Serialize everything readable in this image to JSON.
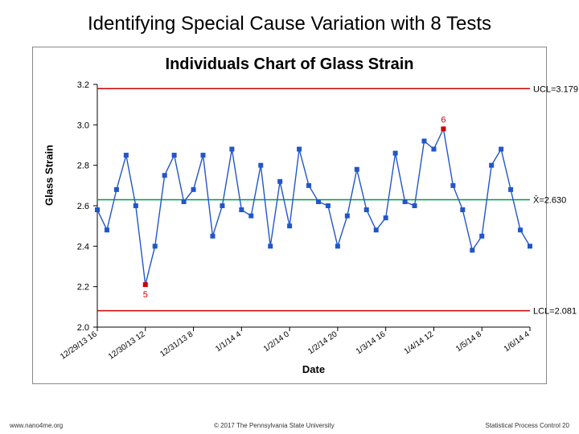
{
  "slide": {
    "title": "Identifying Special Cause Variation with 8 Tests"
  },
  "chart": {
    "type": "line",
    "title": "Individuals Chart of Glass Strain",
    "ylabel": "Glass Strain",
    "xlabel": "Date",
    "ylim": [
      2.0,
      3.2
    ],
    "ytick_step": 0.2,
    "yticks": [
      "3.2",
      "3.0",
      "2.8",
      "2.6",
      "2.4",
      "2.2",
      "2.0"
    ],
    "xticks": [
      "12/29/13 16",
      "12/30/13 12",
      "12/31/13 8",
      "1/1/14 4",
      "1/2/14 0",
      "1/2/14 20",
      "1/3/14 16",
      "1/4/14 12",
      "1/5/14 8",
      "1/6/14 4"
    ],
    "ucl": {
      "value": 3.179,
      "label": "UCL=3.179",
      "color": "#cc0000"
    },
    "mean": {
      "value": 2.63,
      "label": "X̄=2.630",
      "color": "#009944"
    },
    "lcl": {
      "value": 2.081,
      "label": "LCL=2.081",
      "color": "#cc0000"
    },
    "series": {
      "color": "#2256c9",
      "marker": "square",
      "marker_size": 5,
      "line_width": 1.4,
      "values": [
        2.58,
        2.48,
        2.68,
        2.85,
        2.6,
        2.21,
        2.4,
        2.75,
        2.85,
        2.62,
        2.68,
        2.85,
        2.45,
        2.6,
        2.88,
        2.58,
        2.55,
        2.8,
        2.4,
        2.72,
        2.5,
        2.88,
        2.7,
        2.62,
        2.6,
        2.4,
        2.55,
        2.78,
        2.58,
        2.48,
        2.54,
        2.86,
        2.62,
        2.6,
        2.92,
        2.88,
        2.98,
        2.7,
        2.58,
        2.38,
        2.45,
        2.8,
        2.88,
        2.68,
        2.48,
        2.4
      ]
    },
    "outliers": [
      {
        "index": 5,
        "label": "5",
        "color": "#cc0000"
      },
      {
        "index": 36,
        "label": "6",
        "color": "#cc0000"
      }
    ],
    "background_color": "#ffffff",
    "axis_color": "#000000"
  },
  "footer": {
    "left": "www.nano4me.org",
    "center": "© 2017 The Pennsylvania State University",
    "right": "Statistical Process Control 20"
  }
}
